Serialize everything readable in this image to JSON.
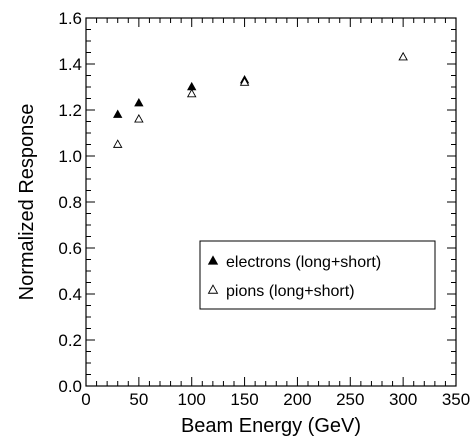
{
  "chart_data": {
    "type": "scatter",
    "xlabel": "Beam Energy (GeV)",
    "ylabel": "Normalized Response",
    "xlim": [
      0,
      350
    ],
    "ylim": [
      0.0,
      1.6
    ],
    "x_ticks": [
      "0",
      "50",
      "100",
      "150",
      "200",
      "250",
      "300",
      "350"
    ],
    "y_ticks": [
      "0.0",
      "0.2",
      "0.4",
      "0.6",
      "0.8",
      "1.0",
      "1.2",
      "1.4",
      "1.6"
    ],
    "grid": false,
    "legend_position": "lower-right",
    "series": [
      {
        "name": "electrons (long+short)",
        "marker": "filled-triangle",
        "points": [
          {
            "x": 30,
            "y": 1.18
          },
          {
            "x": 50,
            "y": 1.23
          },
          {
            "x": 100,
            "y": 1.3
          },
          {
            "x": 150,
            "y": 1.33
          }
        ]
      },
      {
        "name": "pions (long+short)",
        "marker": "open-triangle",
        "points": [
          {
            "x": 30,
            "y": 1.05
          },
          {
            "x": 50,
            "y": 1.16
          },
          {
            "x": 100,
            "y": 1.27
          },
          {
            "x": 150,
            "y": 1.32
          },
          {
            "x": 300,
            "y": 1.43
          }
        ]
      }
    ]
  }
}
